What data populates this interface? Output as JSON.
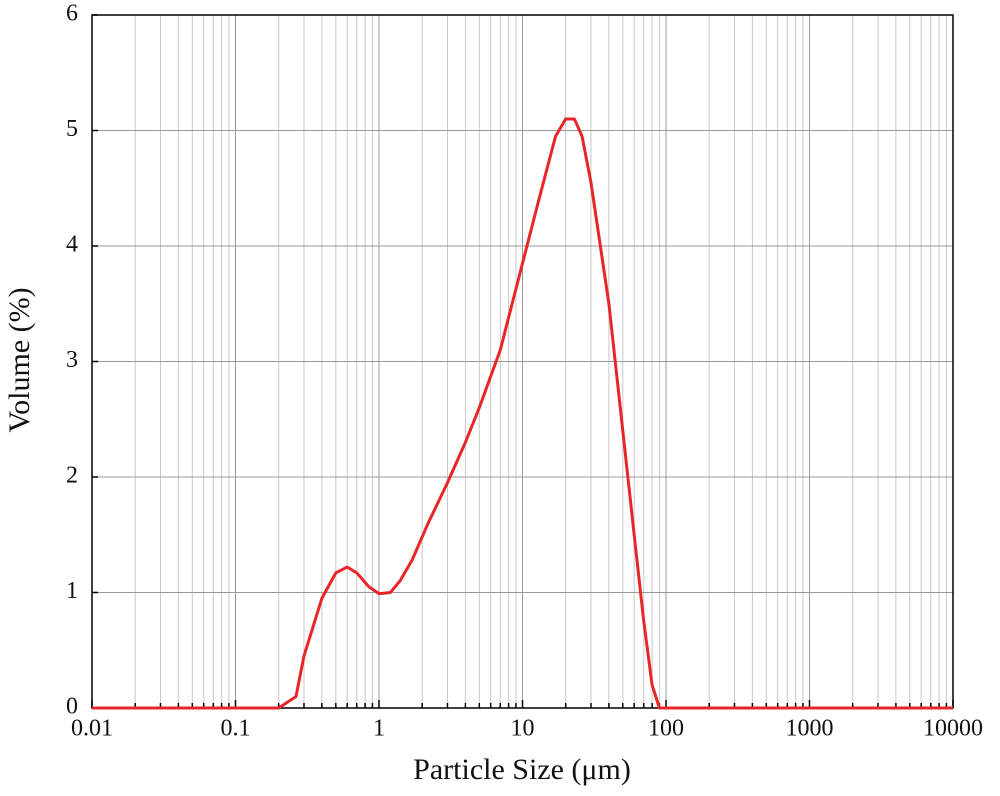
{
  "chart_data": {
    "type": "line",
    "x_label": "Particle Size (μm)",
    "y_label": "Volume (%)",
    "xscale": "log",
    "grid": true,
    "minor_grid": true,
    "xlim": [
      0.01,
      10000
    ],
    "xticks": [
      0.01,
      0.1,
      1,
      10,
      100,
      1000,
      10000
    ],
    "ylim": [
      0,
      6
    ],
    "yticks": [
      0,
      1,
      2,
      3,
      4,
      5,
      6
    ],
    "series": [
      {
        "color": "#e8262a",
        "x": [
          0.01,
          0.2,
          0.264,
          0.3,
          0.4,
          0.5,
          0.6,
          0.7,
          0.85,
          1.0,
          1.2,
          1.4,
          1.7,
          2.2,
          3,
          4,
          5,
          7,
          10,
          13,
          17,
          20,
          23,
          26,
          30,
          40,
          50,
          60,
          70,
          80,
          90,
          10000
        ],
        "values": [
          0,
          0,
          0.1,
          0.45,
          0.95,
          1.17,
          1.22,
          1.17,
          1.05,
          0.99,
          1.0,
          1.1,
          1.28,
          1.6,
          1.95,
          2.3,
          2.6,
          3.1,
          3.85,
          4.4,
          4.95,
          5.1,
          5.1,
          4.95,
          4.55,
          3.5,
          2.4,
          1.5,
          0.75,
          0.2,
          0,
          0
        ]
      }
    ]
  }
}
